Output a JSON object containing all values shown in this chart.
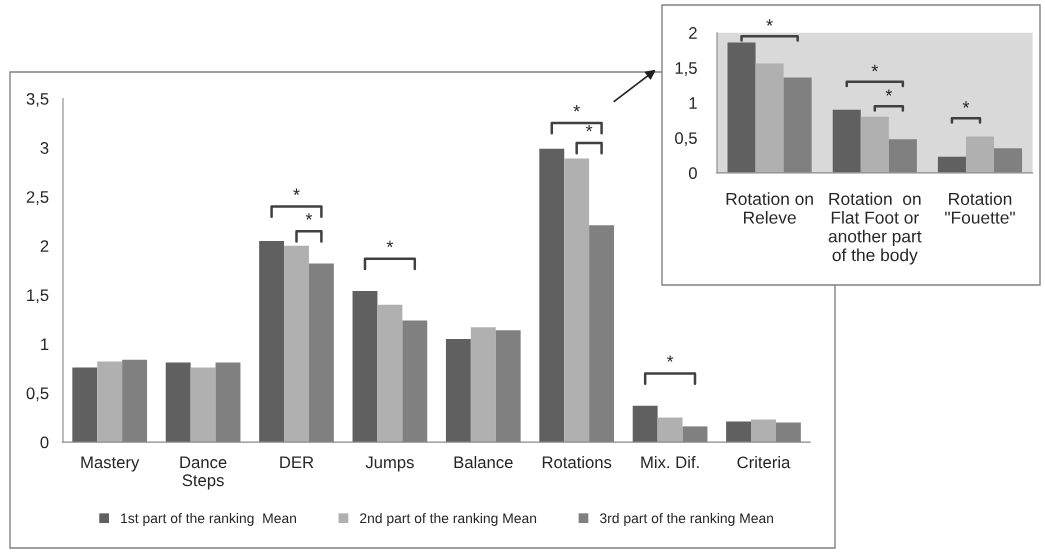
{
  "chart_data": [
    {
      "type": "bar",
      "categories": [
        "Mastery",
        "Dance\nSteps",
        "DER",
        "Jumps",
        "Balance",
        "Rotations",
        "Mix. Dif.",
        "Criteria"
      ],
      "series": [
        {
          "name": "1st part of the ranking  Mean",
          "color": "#606060",
          "values": [
            0.76,
            0.81,
            2.05,
            1.54,
            1.05,
            2.99,
            0.37,
            0.21
          ]
        },
        {
          "name": "2nd part of the ranking Mean",
          "color": "#b0b0b0",
          "values": [
            0.82,
            0.76,
            2.0,
            1.4,
            1.17,
            2.89,
            0.25,
            0.23
          ]
        },
        {
          "name": "3rd part of the ranking Mean",
          "color": "#808080",
          "values": [
            0.84,
            0.81,
            1.82,
            1.24,
            1.14,
            2.21,
            0.16,
            0.2
          ]
        }
      ],
      "ylim": [
        0,
        3.5
      ],
      "yticks": [
        0,
        {
          "value": 0.5,
          "label": "0,5"
        },
        1,
        {
          "value": 1.5,
          "label": "1,5"
        },
        2,
        {
          "value": 2.5,
          "label": "2,5"
        },
        3,
        {
          "value": 3.5,
          "label": "3,5"
        }
      ],
      "grid": false,
      "legend": "bottom",
      "annotations": [
        "*",
        "*",
        "*",
        "*",
        "*",
        "*"
      ]
    },
    {
      "type": "bar",
      "categories": [
        "Rotation on\nReleve",
        "Rotation  on\nFlat Foot or\nanother part\nof the body",
        "Rotation\n\"Fouette\""
      ],
      "series": [
        {
          "color": "#606060",
          "values": [
            1.86,
            0.9,
            0.23
          ]
        },
        {
          "color": "#b0b0b0",
          "values": [
            1.56,
            0.8,
            0.52
          ]
        },
        {
          "color": "#808080",
          "values": [
            1.36,
            0.48,
            0.35
          ]
        }
      ],
      "ylim": [
        0,
        2
      ],
      "yticks": [
        0,
        {
          "value": 0.5,
          "label": "0,5"
        },
        1,
        {
          "value": 1.5,
          "label": "1,5"
        },
        2
      ],
      "grid": false,
      "annotations": [
        "*",
        "*",
        "*",
        "*"
      ]
    }
  ]
}
